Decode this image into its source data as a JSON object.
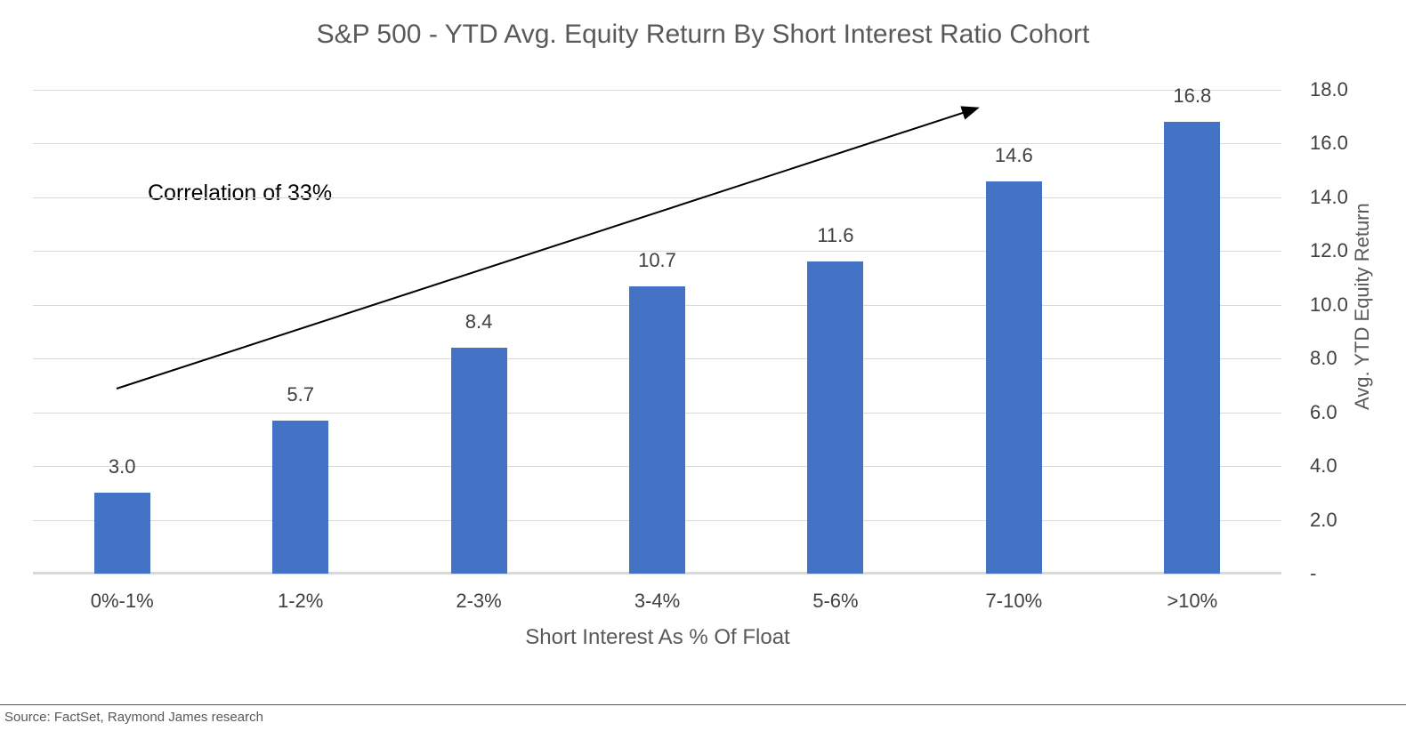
{
  "chart_data": {
    "type": "bar",
    "title": "S&P 500 - YTD Avg. Equity Return By Short Interest Ratio Cohort",
    "categories": [
      "0%-1%",
      "1-2%",
      "2-3%",
      "3-4%",
      "5-6%",
      "7-10%",
      ">10%"
    ],
    "values": [
      3.0,
      5.7,
      8.4,
      10.7,
      11.6,
      14.6,
      16.8
    ],
    "value_labels": [
      "3.0",
      "5.7",
      "8.4",
      "10.7",
      "11.6",
      "14.6",
      "16.8"
    ],
    "xlabel": "Short Interest As % Of Float",
    "ylabel": "Avg. YTD Equity Return",
    "ylim": [
      0,
      18
    ],
    "ytick_step": 2,
    "ytick_labels": [
      "-",
      "2.0",
      "4.0",
      "6.0",
      "8.0",
      "10.0",
      "12.0",
      "14.0",
      "16.0",
      "18.0"
    ],
    "grid": true,
    "legend": "none",
    "annotation": "Correlation of 33%",
    "bar_color": "#4472C4",
    "gridline_color": "#D9D9D9",
    "title_color": "#595959",
    "tick_color": "#404040"
  },
  "footer": {
    "source": "Source: FactSet, Raymond James research"
  }
}
